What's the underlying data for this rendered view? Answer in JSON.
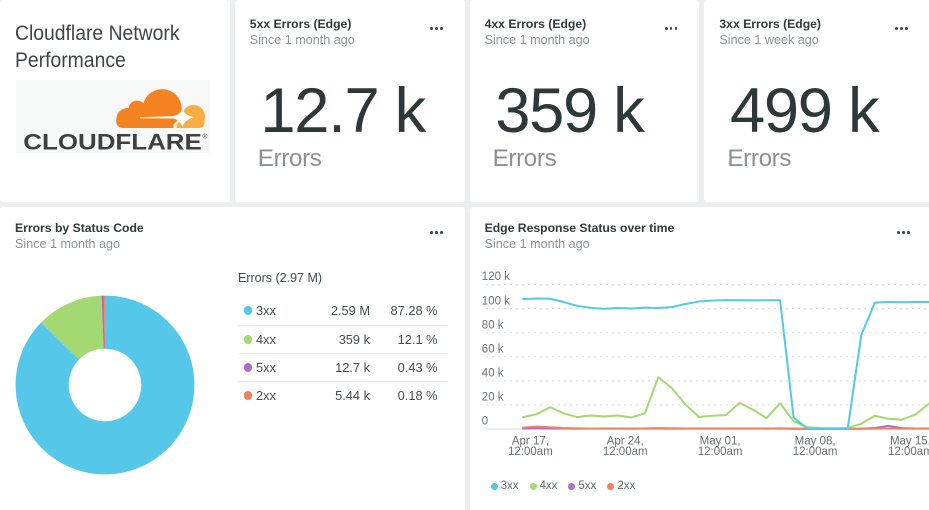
{
  "title_card": {
    "title": "Cloudflare Network Performance",
    "logo_text": "CLOUDFLARE",
    "logo_reg_mark": "®"
  },
  "kpis": [
    {
      "title": "5xx Errors (Edge)",
      "subtitle": "Since 1 month ago",
      "value": "12.7 k",
      "label": "Errors"
    },
    {
      "title": "4xx Errors (Edge)",
      "subtitle": "Since 1 month ago",
      "value": "359 k",
      "label": "Errors"
    },
    {
      "title": "3xx Errors (Edge)",
      "subtitle": "Since 1 week ago",
      "value": "499 k",
      "label": "Errors"
    }
  ],
  "donut_card": {
    "title": "Errors by Status Code",
    "subtitle": "Since 1 month ago",
    "legend_header": "Errors (2.97 M)"
  },
  "timeseries_card": {
    "title": "Edge Response Status over time",
    "subtitle": "Since 1 month ago"
  },
  "colors": {
    "blue_3xx": "#55c7e9",
    "green_4xx": "#a3d873",
    "purple_5xx": "#b06cc8",
    "orange_2xx": "#f0815c",
    "cloudflare_orange": "#f58220",
    "cloudflare_light_orange": "#fbad41",
    "cloudflare_wordmark": "#404041",
    "grid_line": "#d7dada",
    "axis_line": "#e0e3e3"
  },
  "chart_data": [
    {
      "type": "pie",
      "title": "Errors by Status Code",
      "total_label": "Errors (2.97 M)",
      "legend_position": "right",
      "donut_hole_ratio": 0.406,
      "segments": [
        {
          "label": "3xx",
          "value": 2590000,
          "display": "2.59 M",
          "percent_display": "87.28 %",
          "percent": 87.28,
          "color_key": "blue_3xx"
        },
        {
          "label": "4xx",
          "value": 359000,
          "display": "359 k",
          "percent_display": "12.1 %",
          "percent": 12.1,
          "color_key": "green_4xx"
        },
        {
          "label": "5xx",
          "value": 12700,
          "display": "12.7 k",
          "percent_display": "0.43 %",
          "percent": 0.43,
          "color_key": "purple_5xx"
        },
        {
          "label": "2xx",
          "value": 5440,
          "display": "5.44 k",
          "percent_display": "0.18 %",
          "percent": 0.18,
          "color_key": "orange_2xx"
        }
      ]
    },
    {
      "type": "line",
      "title": "Edge Response Status over time",
      "xlabel": "",
      "ylabel": "",
      "ylim": [
        0,
        120000
      ],
      "grid": "dashed horizontal",
      "legend_position": "bottom",
      "y_tick_labels": [
        "0",
        "20 k",
        "40 k",
        "60 k",
        "80 k",
        "100 k",
        "120 k"
      ],
      "y_tick_values": [
        0,
        20000,
        40000,
        60000,
        80000,
        100000,
        120000
      ],
      "x_tick_labels": [
        [
          "Apr 17,",
          "12:00am"
        ],
        [
          "Apr 24,",
          "12:00am"
        ],
        [
          "May 01,",
          "12:00am"
        ],
        [
          "May 08,",
          "12:00am"
        ],
        [
          "May 15,",
          "12:00am"
        ]
      ],
      "x_tick_days": [
        1,
        8,
        15,
        22,
        29
      ],
      "series": [
        {
          "name": "3xx",
          "color_key": "blue_3xx",
          "values": [
            108000,
            108400,
            108200,
            105500,
            102300,
            100700,
            99800,
            100500,
            100100,
            100900,
            100500,
            101300,
            103900,
            105900,
            106800,
            107100,
            107000,
            106900,
            107000,
            107000,
            9600,
            400,
            100,
            100,
            200,
            78000,
            105000,
            105500,
            105300,
            105500,
            105500
          ]
        },
        {
          "name": "4xx",
          "color_key": "green_4xx",
          "values": [
            9900,
            12200,
            18200,
            13000,
            9900,
            11200,
            10400,
            11200,
            9600,
            13000,
            43000,
            34000,
            20500,
            10000,
            11000,
            11500,
            21700,
            16000,
            9000,
            21500,
            6500,
            1500,
            800,
            700,
            800,
            4400,
            11000,
            8500,
            7800,
            12000,
            21000
          ]
        },
        {
          "name": "5xx",
          "color_key": "purple_5xx",
          "values": [
            400,
            500,
            450,
            400,
            350,
            400,
            400,
            380,
            360,
            400,
            600,
            500,
            420,
            400,
            380,
            400,
            450,
            400,
            360,
            500,
            300,
            150,
            120,
            120,
            150,
            300,
            800,
            2600,
            700,
            400,
            450
          ]
        },
        {
          "name": "2xx",
          "color_key": "orange_2xx",
          "values": [
            1200,
            2000,
            1500,
            800,
            500,
            400,
            350,
            300,
            280,
            300,
            350,
            300,
            280,
            300,
            300,
            320,
            350,
            300,
            280,
            350,
            200,
            120,
            100,
            100,
            120,
            200,
            300,
            400,
            300,
            280,
            300
          ]
        }
      ]
    }
  ]
}
